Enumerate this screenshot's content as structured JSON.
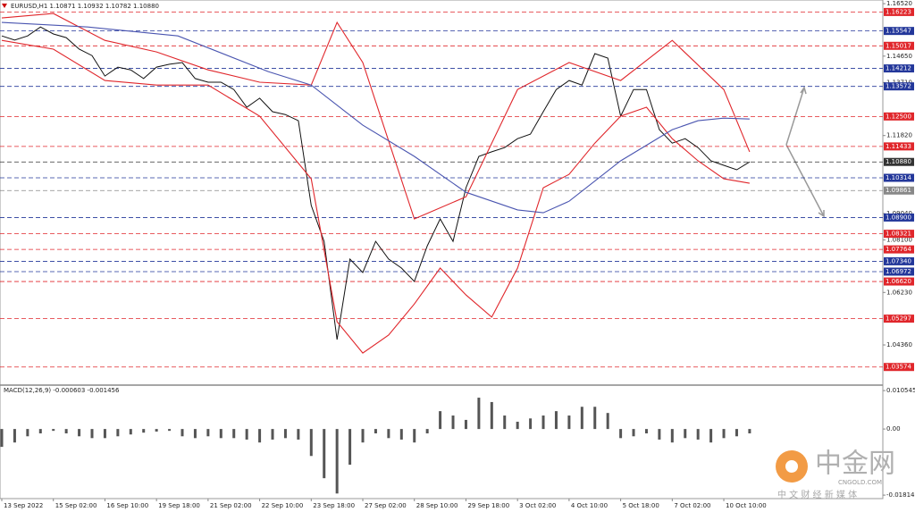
{
  "chart_data": {
    "type": "line",
    "title": "EURUSD,H1  1.10871 1.10932 1.10782 1.10880",
    "xlim": [
      0,
      410
    ],
    "xticks": [
      {
        "value": 0,
        "label": "13 Sep 2022"
      },
      {
        "value": 24,
        "label": "15 Sep 02:00"
      },
      {
        "value": 48,
        "label": "16 Sep 10:00"
      },
      {
        "value": 72,
        "label": "19 Sep 18:00"
      },
      {
        "value": 96,
        "label": "21 Sep 02:00"
      },
      {
        "value": 120,
        "label": "22 Sep 10:00"
      },
      {
        "value": 144,
        "label": "23 Sep 18:00"
      },
      {
        "value": 168,
        "label": "27 Sep 02:00"
      },
      {
        "value": 192,
        "label": "28 Sep 10:00"
      },
      {
        "value": 216,
        "label": "29 Sep 18:00"
      },
      {
        "value": 240,
        "label": "3 Oct 02:00"
      },
      {
        "value": 264,
        "label": "4 Oct 10:00"
      },
      {
        "value": 288,
        "label": "5 Oct 18:00"
      },
      {
        "value": 312,
        "label": "7 Oct 02:00"
      },
      {
        "value": 336,
        "label": "10 Oct 10:00"
      }
    ],
    "ylim": [
      1.0296,
      1.1665
    ],
    "yticks": [
      {
        "value": 1.1652,
        "label": "1.16520"
      },
      {
        "value": 1.1465,
        "label": "1.14650"
      },
      {
        "value": 1.1371,
        "label": "1.13710"
      },
      {
        "value": 1.1182,
        "label": "1.11820"
      },
      {
        "value": 1.0904,
        "label": "1.09040"
      },
      {
        "value": 1.081,
        "label": "1.08100"
      },
      {
        "value": 1.0623,
        "label": "1.06230"
      },
      {
        "value": 1.0436,
        "label": "1.04360"
      }
    ],
    "levels": [
      {
        "value": 1.16223,
        "label": "1.16223",
        "color": "#e0262b"
      },
      {
        "value": 1.15547,
        "label": "1.15547",
        "color": "#23379a"
      },
      {
        "value": 1.15017,
        "label": "1.15017",
        "color": "#e0262b"
      },
      {
        "value": 1.14212,
        "label": "1.14212",
        "color": "#23379a"
      },
      {
        "value": 1.13572,
        "label": "1.13572",
        "color": "#23379a"
      },
      {
        "value": 1.125,
        "label": "1.12500",
        "color": "#e0262b"
      },
      {
        "value": 1.11433,
        "label": "1.11433",
        "color": "#e0262b"
      },
      {
        "value": 1.1088,
        "label": "1.10880",
        "color": "#333333"
      },
      {
        "value": 1.10314,
        "label": "1.10314",
        "color": "#23379a"
      },
      {
        "value": 1.09861,
        "label": "1.09861",
        "color": "#888888"
      },
      {
        "value": 1.089,
        "label": "1.08900",
        "color": "#23379a"
      },
      {
        "value": 1.08321,
        "label": "1.08321",
        "color": "#e0262b"
      },
      {
        "value": 1.07764,
        "label": "1.07764",
        "color": "#e0262b"
      },
      {
        "value": 1.0734,
        "label": "1.07340",
        "color": "#23379a"
      },
      {
        "value": 1.06972,
        "label": "1.06972",
        "color": "#23379a"
      },
      {
        "value": 1.0662,
        "label": "1.06620",
        "color": "#e0262b"
      },
      {
        "value": 1.05297,
        "label": "1.05297",
        "color": "#e0262b"
      },
      {
        "value": 1.03574,
        "label": "1.03574",
        "color": "#e0262b"
      }
    ],
    "series": [
      {
        "color": "#111111",
        "x": [
          0,
          6,
          12,
          18,
          24,
          30,
          36,
          42,
          48,
          54,
          60,
          66,
          72,
          78,
          84,
          90,
          96,
          102,
          108,
          114,
          120,
          126,
          132,
          138,
          144,
          150,
          156,
          162,
          168,
          174,
          180,
          186,
          192,
          198,
          204,
          210,
          216,
          222,
          228,
          234,
          240,
          246,
          252,
          258,
          264,
          270,
          276,
          282,
          288,
          294,
          300,
          306,
          312,
          318,
          324,
          330,
          336,
          342,
          348
        ],
        "values": [
          1.1537,
          1.1522,
          1.1537,
          1.1569,
          1.1544,
          1.1531,
          1.149,
          1.1467,
          1.1394,
          1.1426,
          1.1416,
          1.1385,
          1.1426,
          1.1436,
          1.1442,
          1.1385,
          1.1372,
          1.1372,
          1.1346,
          1.1283,
          1.1315,
          1.1267,
          1.1257,
          1.1235,
          1.0933,
          1.0805,
          1.0455,
          1.0742,
          1.0694,
          1.0805,
          1.0742,
          1.071,
          1.0662,
          1.0789,
          1.0885,
          1.0805,
          1.0996,
          1.1108,
          1.1124,
          1.1139,
          1.1171,
          1.1187,
          1.1267,
          1.1346,
          1.1378,
          1.1362,
          1.1474,
          1.1458,
          1.1251,
          1.1346,
          1.1346,
          1.1203,
          1.1155,
          1.1171,
          1.1139,
          1.1092,
          1.1076,
          1.106,
          1.1088
        ]
      },
      {
        "color": "#e0262b",
        "x": [
          0,
          24,
          48,
          72,
          96,
          120,
          144,
          156,
          168,
          192,
          216,
          240,
          264,
          288,
          312,
          336,
          348
        ],
        "values": [
          1.1601,
          1.1617,
          1.1521,
          1.148,
          1.1416,
          1.1372,
          1.1362,
          1.1585,
          1.1442,
          1.0885,
          1.0964,
          1.1346,
          1.1442,
          1.1378,
          1.1521,
          1.1346,
          1.1124
        ]
      },
      {
        "color": "#e0262b",
        "x": [
          0,
          24,
          48,
          72,
          96,
          120,
          144,
          156,
          168,
          180,
          192,
          204,
          216,
          228,
          240,
          252,
          264,
          276,
          288,
          300,
          312,
          324,
          336,
          348
        ],
        "values": [
          1.1521,
          1.149,
          1.1378,
          1.1362,
          1.1362,
          1.1251,
          1.1028,
          1.0519,
          1.0407,
          1.0471,
          1.0582,
          1.071,
          1.0614,
          1.0535,
          1.071,
          1.0996,
          1.1044,
          1.1155,
          1.1251,
          1.1283,
          1.1171,
          1.1092,
          1.1028,
          1.1012
        ]
      },
      {
        "color": "#4a55b0",
        "x": [
          0,
          40,
          82,
          124,
          144,
          168,
          192,
          216,
          240,
          252,
          264,
          288,
          312,
          324,
          336,
          348
        ],
        "values": [
          1.1585,
          1.1569,
          1.1537,
          1.141,
          1.1362,
          1.1219,
          1.1108,
          1.098,
          1.0917,
          1.0907,
          1.0948,
          1.1092,
          1.1203,
          1.1235,
          1.1244,
          1.1241
        ]
      }
    ],
    "macd": {
      "type": "bar",
      "label": "MACD(12,26,9) -0.000603 -0.001456",
      "color": "#555555",
      "ylim": [
        -0.0191,
        0.0118
      ],
      "yticks": [
        0.010545,
        {
          "value": 0,
          "label": "0.00"
        },
        -0.018145
      ],
      "x": [
        0,
        6,
        12,
        18,
        24,
        30,
        36,
        42,
        48,
        54,
        60,
        66,
        72,
        78,
        84,
        90,
        96,
        102,
        108,
        114,
        120,
        126,
        132,
        138,
        144,
        150,
        156,
        162,
        168,
        174,
        180,
        186,
        192,
        198,
        204,
        210,
        216,
        222,
        228,
        234,
        240,
        246,
        252,
        258,
        264,
        270,
        276,
        282,
        288,
        294,
        300,
        306,
        312,
        318,
        324,
        330,
        336,
        342,
        348
      ],
      "values": [
        -0.0049,
        -0.0037,
        -0.002,
        -0.0012,
        -0.0005,
        -0.0012,
        -0.002,
        -0.0025,
        -0.0025,
        -0.002,
        -0.0015,
        -0.001,
        -0.0007,
        -0.0005,
        -0.002,
        -0.0025,
        -0.002,
        -0.0025,
        -0.0025,
        -0.0029,
        -0.0037,
        -0.0029,
        -0.0025,
        -0.0029,
        -0.0074,
        -0.0135,
        -0.0177,
        -0.0098,
        -0.0037,
        -0.0012,
        -0.0025,
        -0.0029,
        -0.0037,
        -0.0012,
        0.0049,
        0.0037,
        0.0025,
        0.0086,
        0.0074,
        0.0037,
        0.002,
        0.0029,
        0.0037,
        0.0049,
        0.0037,
        0.0061,
        0.0061,
        0.0044,
        -0.0025,
        -0.002,
        -0.0012,
        -0.0029,
        -0.0037,
        -0.0025,
        -0.0029,
        -0.0037,
        -0.0025,
        -0.002,
        -0.0012
      ]
    }
  },
  "watermark": {
    "name": "中金网",
    "site": "CNGOLD.COM",
    "tagline": "中 文 财 经 新 媒 体"
  }
}
